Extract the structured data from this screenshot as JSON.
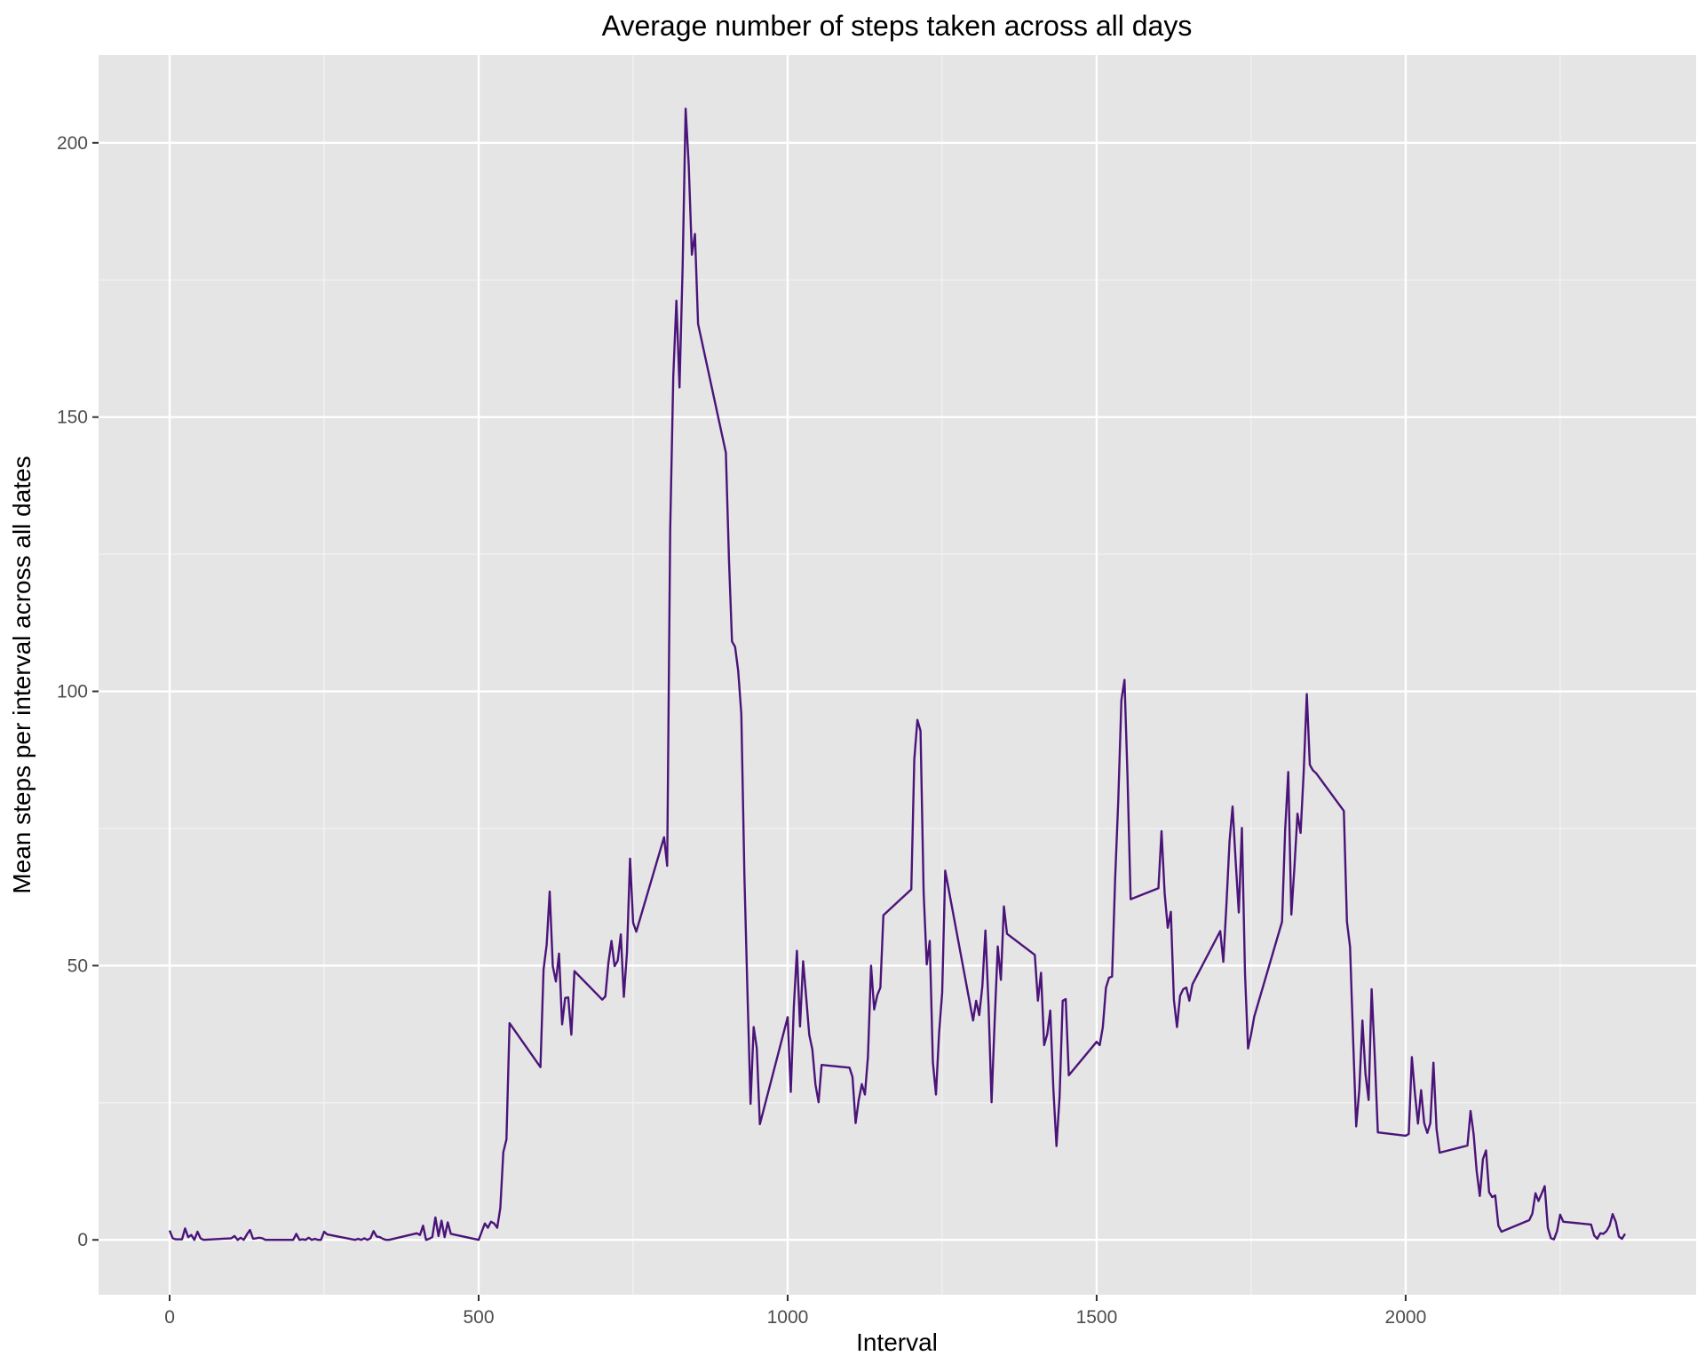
{
  "chart_data": {
    "type": "line",
    "title": "Average number of steps taken across all days",
    "xlabel": "Interval",
    "ylabel": "Mean steps per interval across all dates",
    "xlim": [
      -115,
      2470
    ],
    "ylim": [
      -10,
      216
    ],
    "x_ticks": [
      0,
      500,
      1000,
      1500,
      2000
    ],
    "y_ticks": [
      0,
      50,
      100,
      150,
      200
    ],
    "grid": true,
    "legend": "none",
    "colors": {
      "panel_background": "#e5e5e5",
      "grid_major": "#ffffff",
      "grid_minor": "#f2f2f2",
      "line": "#4b1479",
      "tick": "#333333",
      "tick_label": "#4d4d4d"
    },
    "series": [
      {
        "x": [
          0,
          5,
          10,
          20,
          25,
          30,
          35,
          40,
          45,
          50,
          55,
          100,
          105,
          110,
          115,
          120,
          125,
          130,
          135,
          140,
          145,
          150,
          155,
          200,
          205,
          210,
          215,
          220,
          225,
          230,
          235,
          240,
          245,
          250,
          255,
          300,
          305,
          310,
          315,
          320,
          325,
          330,
          335,
          340,
          345,
          350,
          355,
          400,
          405,
          410,
          415,
          420,
          425,
          430,
          435,
          440,
          445,
          450,
          455,
          500,
          505,
          510,
          515,
          520,
          525,
          530,
          535,
          540,
          545,
          550,
          600,
          605,
          610,
          615,
          620,
          625,
          630,
          635,
          640,
          645,
          650,
          655,
          700,
          705,
          710,
          715,
          720,
          725,
          730,
          735,
          740,
          745,
          750,
          755,
          800,
          805,
          810,
          815,
          820,
          825,
          830,
          835,
          840,
          845,
          850,
          855,
          900,
          905,
          910,
          915,
          920,
          925,
          930,
          935,
          940,
          945,
          950,
          955,
          1000,
          1005,
          1010,
          1015,
          1020,
          1025,
          1030,
          1035,
          1040,
          1045,
          1050,
          1055,
          1100,
          1105,
          1110,
          1115,
          1120,
          1125,
          1130,
          1135,
          1140,
          1145,
          1150,
          1155,
          1200,
          1205,
          1210,
          1215,
          1220,
          1225,
          1230,
          1235,
          1240,
          1245,
          1250,
          1255,
          1300,
          1305,
          1310,
          1315,
          1320,
          1325,
          1330,
          1335,
          1340,
          1345,
          1350,
          1355,
          1400,
          1405,
          1410,
          1415,
          1420,
          1425,
          1430,
          1435,
          1440,
          1445,
          1450,
          1455,
          1500,
          1505,
          1510,
          1515,
          1520,
          1525,
          1530,
          1535,
          1540,
          1545,
          1550,
          1555,
          1600,
          1605,
          1610,
          1615,
          1620,
          1625,
          1630,
          1635,
          1640,
          1645,
          1650,
          1655,
          1700,
          1705,
          1710,
          1715,
          1720,
          1725,
          1730,
          1735,
          1740,
          1745,
          1750,
          1755,
          1800,
          1805,
          1810,
          1815,
          1820,
          1825,
          1830,
          1835,
          1840,
          1845,
          1850,
          1855,
          1900,
          1905,
          1910,
          1915,
          1920,
          1925,
          1930,
          1935,
          1940,
          1945,
          1950,
          1955,
          2000,
          2005,
          2010,
          2015,
          2020,
          2025,
          2030,
          2035,
          2040,
          2045,
          2050,
          2055,
          2100,
          2105,
          2110,
          2115,
          2120,
          2125,
          2130,
          2135,
          2140,
          2145,
          2150,
          2155,
          2200,
          2205,
          2210,
          2215,
          2220,
          2225,
          2230,
          2235,
          2240,
          2245,
          2250,
          2255,
          2300,
          2305,
          2310,
          2315,
          2320,
          2325,
          2330,
          2335,
          2340,
          2345,
          2350,
          2355
        ],
        "values": [
          1.7,
          0.3,
          0.1,
          0.1,
          2.1,
          0.5,
          0.9,
          0.0,
          1.5,
          0.3,
          0.0,
          0.3,
          0.7,
          0.0,
          0.4,
          0.0,
          1.0,
          1.8,
          0.2,
          0.3,
          0.4,
          0.3,
          0.0,
          0.0,
          1.1,
          0.0,
          0.1,
          0.0,
          0.4,
          0.0,
          0.2,
          0.0,
          0.0,
          1.5,
          1.0,
          0.0,
          0.2,
          0.0,
          0.3,
          0.0,
          0.3,
          1.6,
          0.6,
          0.5,
          0.2,
          0.0,
          0.0,
          1.2,
          0.9,
          2.6,
          0.0,
          0.2,
          0.5,
          4.1,
          0.7,
          3.5,
          0.5,
          3.2,
          1.1,
          0.0,
          1.5,
          3.0,
          2.2,
          3.3,
          3.0,
          2.2,
          5.8,
          16.0,
          18.3,
          39.5,
          31.5,
          49.3,
          53.8,
          63.5,
          49.9,
          47.1,
          52.2,
          39.3,
          44.1,
          44.2,
          37.4,
          49.0,
          43.8,
          44.4,
          50.5,
          54.5,
          49.9,
          50.9,
          55.7,
          44.3,
          52.3,
          69.5,
          57.8,
          56.2,
          73.4,
          68.2,
          129.4,
          157.5,
          171.2,
          155.4,
          177.3,
          206.2,
          195.9,
          179.6,
          183.4,
          167.0,
          143.5,
          124.0,
          109.1,
          108.1,
          103.7,
          95.9,
          66.2,
          45.2,
          24.8,
          38.8,
          34.98,
          21.1,
          40.6,
          26.98,
          42.4,
          52.7,
          38.9,
          50.8,
          44.3,
          37.4,
          34.7,
          28.3,
          25.1,
          31.9,
          31.4,
          29.7,
          21.3,
          25.5,
          28.4,
          26.5,
          33.4,
          50.0,
          42.0,
          44.6,
          46.0,
          59.2,
          63.9,
          87.6,
          94.8,
          92.8,
          63.4,
          50.2,
          54.5,
          32.4,
          26.5,
          37.7,
          45.1,
          67.3,
          40.0,
          43.6,
          40.98,
          46.2,
          56.4,
          42.8,
          25.1,
          39.96,
          53.5,
          47.4,
          60.8,
          55.8,
          51.96,
          43.6,
          48.7,
          35.5,
          37.5,
          41.8,
          27.5,
          17.1,
          26.1,
          43.6,
          43.9,
          30.0,
          36.1,
          35.5,
          38.8,
          45.96,
          47.8,
          48.0,
          66.0,
          80.2,
          98.4,
          102.1,
          84.4,
          62.1,
          64.1,
          74.5,
          63.2,
          56.9,
          59.8,
          43.8,
          38.8,
          44.5,
          45.7,
          46.0,
          43.6,
          46.6,
          56.3,
          50.7,
          61.2,
          72.7,
          79.0,
          69.0,
          59.7,
          75.1,
          48.6,
          34.9,
          37.5,
          40.7,
          58.0,
          74.7,
          85.3,
          59.3,
          67.8,
          77.7,
          74.2,
          85.3,
          99.5,
          86.6,
          85.6,
          85.1,
          78.2,
          58.0,
          53.4,
          36.3,
          20.7,
          27.4,
          40.0,
          30.2,
          25.5,
          45.7,
          33.5,
          19.6,
          19.0,
          19.3,
          33.3,
          26.8,
          21.2,
          27.3,
          21.3,
          19.5,
          21.3,
          32.3,
          20.2,
          15.9,
          17.2,
          23.5,
          19.2,
          12.5,
          8.0,
          14.7,
          16.3,
          8.7,
          7.8,
          8.1,
          2.6,
          1.5,
          3.6,
          4.8,
          8.5,
          7.1,
          8.4,
          9.8,
          2.2,
          0.3,
          0.1,
          1.6,
          4.6,
          3.3,
          2.8,
          0.8,
          0.2,
          1.2,
          1.1,
          1.6,
          2.6,
          4.7,
          3.3,
          0.6,
          0.2,
          1.1
        ]
      }
    ]
  }
}
